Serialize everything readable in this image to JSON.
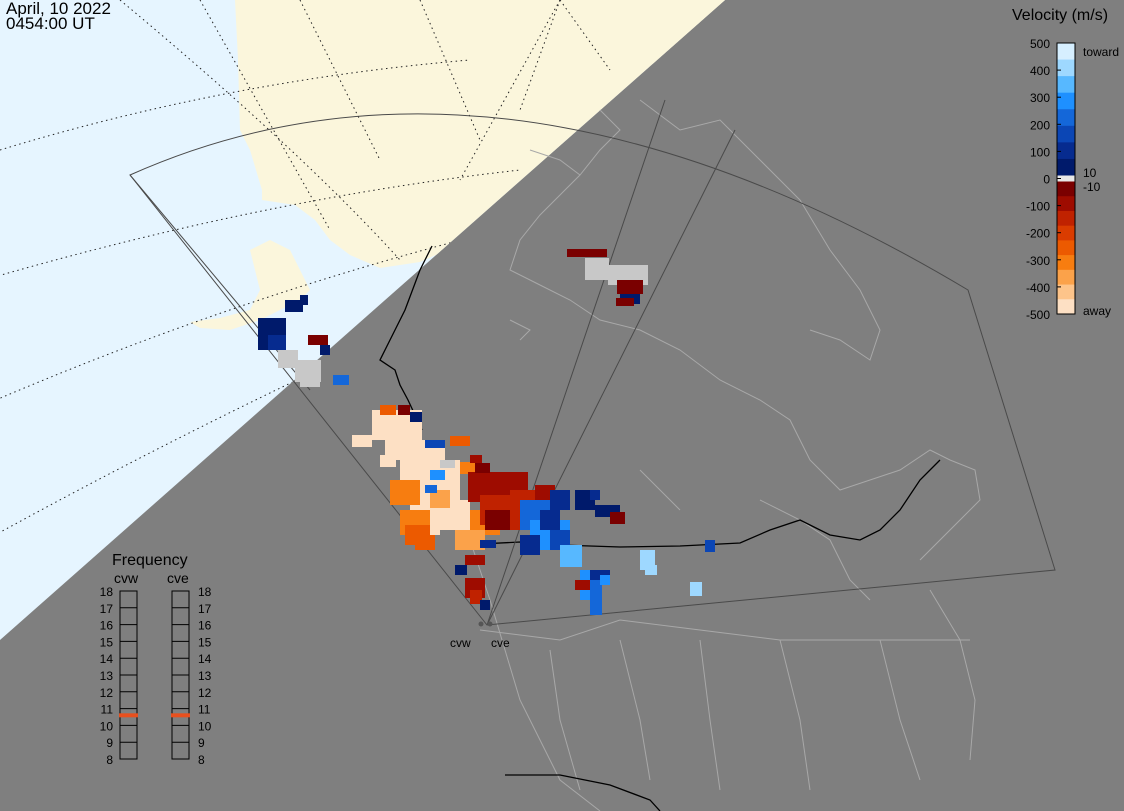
{
  "header": {
    "date": "April, 10 2022",
    "time": "0454:00 UT"
  },
  "velocity_scale": {
    "title": "Velocity (m/s)",
    "ticks": [
      "500",
      "400",
      "300",
      "200",
      "100",
      "0",
      "-100",
      "-200",
      "-300",
      "-400",
      "-500"
    ],
    "toward_label": "toward",
    "away_label": "away",
    "pos_threshold": "10",
    "neg_threshold": "-10",
    "toward_colors": [
      "#d6efff",
      "#9ed8ff",
      "#57b8ff",
      "#1e90ff",
      "#1467d9",
      "#0b46b5",
      "#062b8f",
      "#001a6b"
    ],
    "away_colors": [
      "#7a0000",
      "#9e0c00",
      "#c02200",
      "#da3c00",
      "#ec5a00",
      "#f77d10",
      "#fba24a",
      "#fdc48a",
      "#fde0c4"
    ]
  },
  "frequency": {
    "title": "Frequency",
    "radar_labels": [
      "cvw",
      "cve"
    ],
    "ticks": [
      "18",
      "17",
      "16",
      "15",
      "14",
      "13",
      "12",
      "11",
      "10",
      "9",
      "8"
    ],
    "cvw_mhz": 10.6,
    "cve_mhz": 10.6,
    "marker_color": "#e8501e"
  },
  "radars": [
    "cvw",
    "cve"
  ],
  "colors": {
    "land_daylight": "#fbf6dc",
    "ocean_daylight": "#e6f5ff",
    "night_background": "#7f7f7f",
    "ground_scatter": "#c8c8c8"
  }
}
